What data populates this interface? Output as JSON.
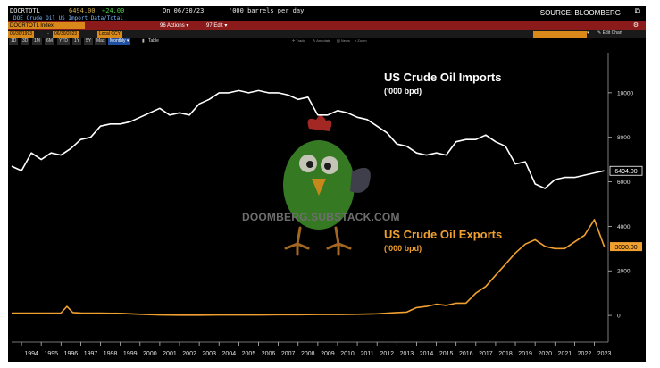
{
  "header": {
    "ticker": "DOCRTOTL",
    "last_value": "6494.00",
    "change": "+24.00",
    "as_of": "On 06/30/23",
    "units": "'000 barrels per day",
    "description": "DOE Crude Oil US Import Data/Total",
    "source": "SOURCE: BLOOMBERG",
    "index_label": "DOCRTOTL Index",
    "actions_menu": "Actions",
    "edit_menu": "Edit",
    "date_start": "06/30/1993",
    "date_end": "06/30/2023",
    "currency_mode": "Local CCY",
    "range_buttons": [
      "1D",
      "3D",
      "1M",
      "6M",
      "YTD",
      "1Y",
      "5Y",
      "Max"
    ],
    "frequency": "Monthly",
    "table_button": "Table",
    "tools": [
      "Track",
      "Annotate",
      "News",
      "Zoom"
    ],
    "edit_chart": "Edit Chart"
  },
  "watermark": {
    "text": "DOOMBERG.SUBSTACK.COM",
    "icon": "cartoon-chicken-icon"
  },
  "chart_data": {
    "type": "line",
    "title": "",
    "xlabel": "",
    "ylabel": "",
    "x_tick_labels": [
      "1994",
      "1995",
      "1996",
      "1997",
      "1998",
      "1999",
      "2000",
      "2001",
      "2002",
      "2003",
      "2004",
      "2005",
      "2006",
      "2007",
      "2008",
      "2009",
      "2010",
      "2011",
      "2012",
      "2013",
      "2014",
      "2015",
      "2016",
      "2017",
      "2018",
      "2019",
      "2020",
      "2021",
      "2022",
      "2023"
    ],
    "x_range": [
      1993.5,
      2023.7
    ],
    "y_ticks": [
      0,
      2000,
      4000,
      6000,
      8000,
      10000
    ],
    "y_tick_labels": [
      "0",
      "2000",
      "4000",
      "6000",
      "8000",
      "10000"
    ],
    "ylim": [
      -1200,
      11800
    ],
    "grid": false,
    "background": "#000000",
    "series": [
      {
        "name": "US Crude Oil Imports",
        "unit_label": "('000 bpd)",
        "color": "#ffffff",
        "last_value_label": "6494.00",
        "x": [
          1993.5,
          1994,
          1994.5,
          1995,
          1995.5,
          1996,
          1996.5,
          1997,
          1997.5,
          1998,
          1998.5,
          1999,
          1999.5,
          2000,
          2000.5,
          2001,
          2001.5,
          2002,
          2002.5,
          2003,
          2003.5,
          2004,
          2004.5,
          2005,
          2005.5,
          2006,
          2006.5,
          2007,
          2007.5,
          2008,
          2008.5,
          2009,
          2009.5,
          2010,
          2010.5,
          2011,
          2011.5,
          2012,
          2012.5,
          2013,
          2013.5,
          2014,
          2014.5,
          2015,
          2015.5,
          2016,
          2016.5,
          2017,
          2017.5,
          2018,
          2018.5,
          2019,
          2019.5,
          2020,
          2020.5,
          2021,
          2021.5,
          2022,
          2022.5,
          2023,
          2023.5
        ],
        "values": [
          6700,
          6500,
          7300,
          7000,
          7300,
          7200,
          7500,
          7900,
          8000,
          8500,
          8600,
          8600,
          8700,
          8900,
          9100,
          9300,
          9000,
          9100,
          9000,
          9500,
          9700,
          10000,
          10000,
          10100,
          10000,
          10100,
          10000,
          10000,
          9900,
          9700,
          9800,
          9000,
          9000,
          9200,
          9100,
          8900,
          8800,
          8500,
          8200,
          7700,
          7600,
          7300,
          7200,
          7300,
          7200,
          7800,
          7900,
          7900,
          8100,
          7800,
          7600,
          6800,
          6900,
          5900,
          5700,
          6100,
          6200,
          6200,
          6300,
          6400,
          6494
        ]
      },
      {
        "name": "US Crude Oil Exports",
        "unit_label": "('000 bpd)",
        "color": "#f0a030",
        "last_value_label": "3090.00",
        "x": [
          1993.5,
          1994,
          1995,
          1996,
          1996.3,
          1996.6,
          1997,
          1998,
          1999,
          2000,
          2001,
          2002,
          2003,
          2004,
          2005,
          2006,
          2007,
          2008,
          2009,
          2010,
          2011,
          2012,
          2013,
          2013.5,
          2014,
          2014.5,
          2015,
          2015.5,
          2016,
          2016.5,
          2017,
          2017.5,
          2018,
          2018.5,
          2019,
          2019.5,
          2020,
          2020.5,
          2021,
          2021.5,
          2022,
          2022.5,
          2023,
          2023.5
        ],
        "values": [
          100,
          100,
          100,
          110,
          400,
          130,
          110,
          100,
          90,
          50,
          20,
          10,
          10,
          20,
          20,
          20,
          30,
          30,
          40,
          40,
          50,
          70,
          130,
          150,
          350,
          400,
          500,
          450,
          550,
          550,
          1000,
          1300,
          1800,
          2300,
          2800,
          3200,
          3400,
          3100,
          3000,
          3000,
          3300,
          3600,
          4300,
          3090
        ]
      }
    ]
  }
}
